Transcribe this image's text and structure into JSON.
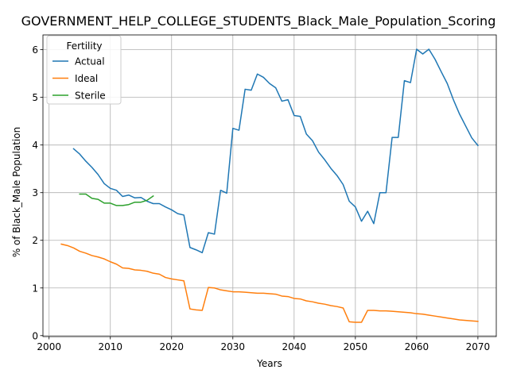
{
  "chart_data": {
    "type": "line",
    "title": "GOVERNMENT_HELP_COLLEGE_STUDENTS_Black_Male_Population_Scoring",
    "xlabel": "Years",
    "ylabel": "% of Black_Male Population",
    "xlim": [
      1999,
      2073
    ],
    "ylim": [
      -0.02,
      6.31
    ],
    "xticks": [
      2000,
      2010,
      2020,
      2030,
      2040,
      2050,
      2060,
      2070
    ],
    "yticks": [
      0,
      1,
      2,
      3,
      4,
      5,
      6
    ],
    "grid": true,
    "legend": {
      "title": "Fertility",
      "position": "top-left"
    },
    "series": [
      {
        "name": "Actual",
        "color": "#1f77b4",
        "x": [
          2004,
          2005,
          2006,
          2007,
          2008,
          2009,
          2010,
          2011,
          2012,
          2013,
          2014,
          2015,
          2016,
          2017,
          2018,
          2019,
          2020,
          2021,
          2022,
          2023,
          2024,
          2025,
          2026,
          2027,
          2028,
          2029,
          2030,
          2031,
          2032,
          2033,
          2034,
          2035,
          2036,
          2037,
          2038,
          2039,
          2040,
          2041,
          2042,
          2043,
          2044,
          2045,
          2046,
          2047,
          2048,
          2049,
          2050,
          2051,
          2052,
          2053,
          2054,
          2055,
          2056,
          2057,
          2058,
          2059,
          2060,
          2061,
          2062,
          2063,
          2064,
          2065,
          2066,
          2067,
          2068,
          2069,
          2070
        ],
        "y": [
          3.92,
          3.81,
          3.66,
          3.53,
          3.38,
          3.19,
          3.09,
          3.05,
          2.92,
          2.95,
          2.89,
          2.9,
          2.82,
          2.77,
          2.77,
          2.7,
          2.64,
          2.56,
          2.53,
          1.85,
          1.8,
          1.74,
          2.16,
          2.13,
          3.05,
          2.99,
          4.35,
          4.31,
          5.17,
          5.15,
          5.49,
          5.42,
          5.29,
          5.2,
          4.92,
          4.95,
          4.62,
          4.6,
          4.23,
          4.09,
          3.85,
          3.69,
          3.51,
          3.36,
          3.17,
          2.82,
          2.7,
          2.4,
          2.61,
          2.35,
          3.0,
          3.0,
          4.16,
          4.16,
          5.35,
          5.31,
          6.01,
          5.91,
          6.01,
          5.8,
          5.54,
          5.29,
          4.95,
          4.65,
          4.4,
          4.15,
          3.99
        ]
      },
      {
        "name": "Ideal",
        "color": "#ff7f0e",
        "x": [
          2002,
          2003,
          2004,
          2005,
          2006,
          2007,
          2008,
          2009,
          2010,
          2011,
          2012,
          2013,
          2014,
          2015,
          2016,
          2017,
          2018,
          2019,
          2020,
          2021,
          2022,
          2023,
          2024,
          2025,
          2026,
          2027,
          2028,
          2029,
          2030,
          2031,
          2032,
          2033,
          2034,
          2035,
          2036,
          2037,
          2038,
          2039,
          2040,
          2041,
          2042,
          2043,
          2044,
          2045,
          2046,
          2047,
          2048,
          2049,
          2050,
          2051,
          2052,
          2053,
          2054,
          2055,
          2056,
          2057,
          2058,
          2059,
          2060,
          2061,
          2062,
          2063,
          2064,
          2065,
          2066,
          2067,
          2068,
          2069,
          2070
        ],
        "y": [
          1.92,
          1.89,
          1.84,
          1.77,
          1.73,
          1.68,
          1.65,
          1.61,
          1.55,
          1.5,
          1.42,
          1.41,
          1.38,
          1.37,
          1.35,
          1.31,
          1.29,
          1.22,
          1.19,
          1.17,
          1.15,
          0.56,
          0.54,
          0.53,
          1.01,
          1.0,
          0.96,
          0.94,
          0.92,
          0.92,
          0.91,
          0.9,
          0.89,
          0.89,
          0.88,
          0.87,
          0.83,
          0.82,
          0.78,
          0.77,
          0.73,
          0.71,
          0.68,
          0.66,
          0.63,
          0.61,
          0.58,
          0.29,
          0.28,
          0.28,
          0.53,
          0.53,
          0.52,
          0.52,
          0.51,
          0.5,
          0.49,
          0.48,
          0.46,
          0.45,
          0.43,
          0.41,
          0.39,
          0.37,
          0.35,
          0.33,
          0.32,
          0.31,
          0.3
        ]
      },
      {
        "name": "Sterile",
        "color": "#2ca02c",
        "x": [
          2005,
          2006,
          2007,
          2008,
          2009,
          2010,
          2011,
          2012,
          2013,
          2014,
          2015,
          2016,
          2017
        ],
        "y": [
          2.97,
          2.97,
          2.88,
          2.86,
          2.78,
          2.78,
          2.73,
          2.73,
          2.75,
          2.8,
          2.8,
          2.84,
          2.93
        ]
      }
    ]
  }
}
